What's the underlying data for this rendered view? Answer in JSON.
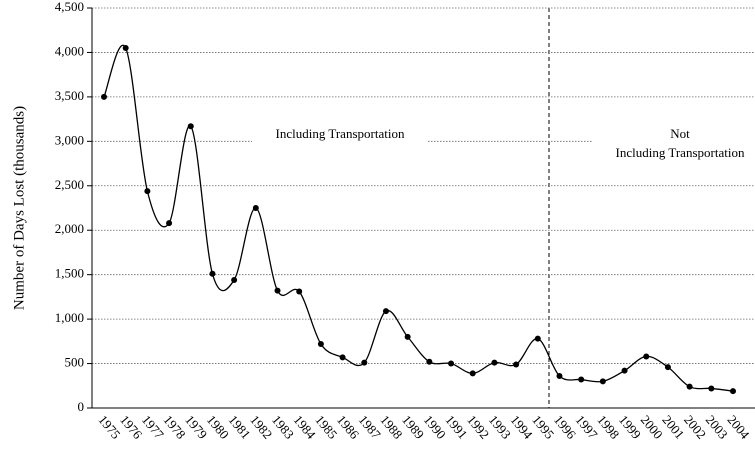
{
  "chart_data": {
    "type": "line",
    "y_label": "Number of Days Lost  (thousands)",
    "categories": [
      "1975",
      "1976",
      "1977",
      "1978",
      "1979",
      "1980",
      "1981",
      "1982",
      "1983",
      "1984",
      "1985",
      "1986",
      "1987",
      "1988",
      "1989",
      "1990",
      "1991",
      "1992",
      "1993",
      "1994",
      "1995",
      "1996",
      "1997",
      "1998",
      "1999",
      "2000",
      "2001",
      "2002",
      "2003",
      "2004"
    ],
    "series": [
      {
        "color": "#000000",
        "values": [
          3500,
          4050,
          2440,
          2080,
          3170,
          1510,
          1440,
          2250,
          1320,
          1310,
          720,
          570,
          510,
          1090,
          800,
          520,
          500,
          390,
          510,
          490,
          780,
          360,
          320,
          300,
          420,
          580,
          460,
          240,
          220,
          190
        ]
      }
    ],
    "ylim": [
      0,
      4500
    ],
    "yticks": [
      0,
      500,
      {
        "value": 1000,
        "label": "1,000"
      },
      {
        "value": 1500,
        "label": "1,500"
      },
      {
        "value": 2000,
        "label": "2,000"
      },
      {
        "value": 2500,
        "label": "2,500"
      },
      {
        "value": 3000,
        "label": "3,000"
      },
      {
        "value": 3500,
        "label": "3,500"
      },
      {
        "value": 4000,
        "label": "4,000"
      },
      {
        "value": 4500,
        "label": "4,500"
      }
    ],
    "grid": true,
    "annotations": [
      [
        "Including Transportation"
      ],
      [
        "Not",
        "Including Transportation"
      ]
    ]
  }
}
